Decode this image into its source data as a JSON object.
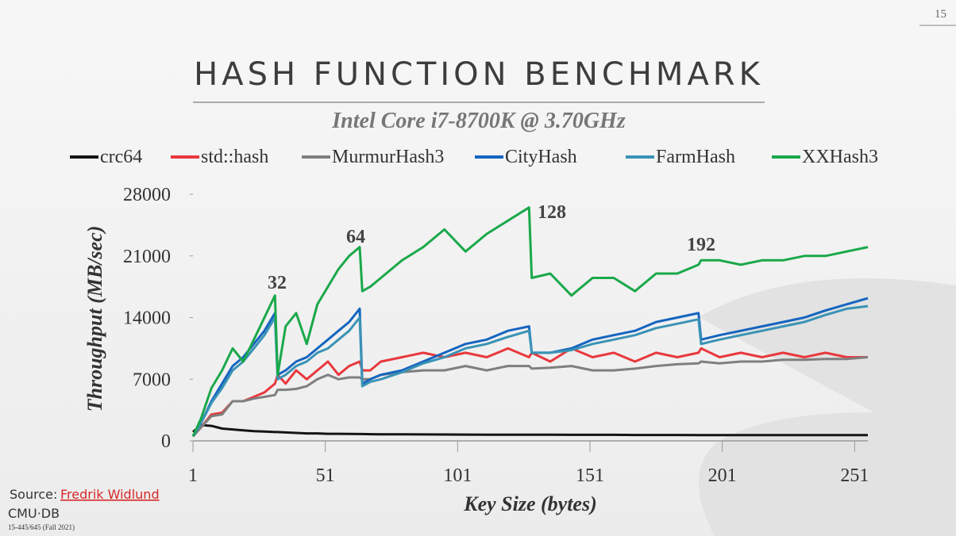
{
  "slide": {
    "page_number": "15",
    "title": "HASH FUNCTION BENCHMARK",
    "source_prefix": "Source:",
    "source_link": "Fredrik Widlund",
    "logo": "CMU·DB",
    "course": "15-445/645 (Fall 2021)"
  },
  "chart_data": {
    "type": "line",
    "subtitle": "Intel Core i7-8700K @ 3.70GHz",
    "x_label": "Key Size (bytes)",
    "y_label": "Throughput (MB/sec)",
    "x": [
      1,
      4,
      8,
      12,
      16,
      20,
      24,
      28,
      32,
      33,
      36,
      40,
      44,
      48,
      52,
      56,
      60,
      64,
      65,
      68,
      72,
      80,
      88,
      96,
      104,
      112,
      120,
      128,
      129,
      136,
      144,
      152,
      160,
      168,
      176,
      184,
      192,
      193,
      200,
      208,
      216,
      224,
      232,
      240,
      248,
      256
    ],
    "xlim": [
      1,
      256
    ],
    "xticks": [
      1,
      51,
      101,
      151,
      201,
      251
    ],
    "ylim": [
      0,
      28000
    ],
    "yticks": [
      0,
      7000,
      14000,
      21000,
      28000
    ],
    "grid": false,
    "legend": "top",
    "annotations": [
      "32",
      "64",
      "128",
      "192"
    ],
    "series": [
      {
        "name": "crc64",
        "color": "#141414",
        "values": [
          1000,
          1800,
          1700,
          1400,
          1300,
          1200,
          1100,
          1050,
          1000,
          1000,
          950,
          900,
          850,
          850,
          800,
          800,
          780,
          770,
          770,
          760,
          750,
          740,
          730,
          720,
          710,
          700,
          700,
          690,
          690,
          690,
          680,
          680,
          680,
          670,
          670,
          670,
          660,
          660,
          660,
          660,
          660,
          650,
          650,
          650,
          650,
          650
        ]
      },
      {
        "name": "std::hash",
        "color": "#e8383d",
        "values": [
          500,
          1500,
          3000,
          3200,
          4500,
          4500,
          5000,
          5500,
          6500,
          7500,
          6500,
          8000,
          7000,
          8000,
          9000,
          7500,
          8500,
          9000,
          8000,
          8000,
          9000,
          9500,
          10000,
          9500,
          10000,
          9500,
          10500,
          9500,
          10000,
          9000,
          10500,
          9500,
          10000,
          9000,
          10000,
          9500,
          10000,
          10500,
          9500,
          10000,
          9500,
          10000,
          9500,
          10000,
          9500,
          9500
        ]
      },
      {
        "name": "MurmurHash3",
        "color": "#7f7f7f",
        "values": [
          500,
          1500,
          2800,
          3000,
          4500,
          4500,
          4800,
          5000,
          5200,
          5800,
          5800,
          5900,
          6200,
          7000,
          7500,
          7000,
          7200,
          7200,
          7000,
          7000,
          7500,
          7800,
          8000,
          8000,
          8500,
          8000,
          8500,
          8500,
          8200,
          8300,
          8500,
          8000,
          8000,
          8200,
          8500,
          8700,
          8800,
          9000,
          8800,
          9000,
          9000,
          9200,
          9200,
          9300,
          9300,
          9500
        ]
      },
      {
        "name": "CityHash",
        "color": "#1565c0",
        "values": [
          500,
          2000,
          4500,
          6500,
          8500,
          9500,
          11000,
          12500,
          14500,
          7500,
          8000,
          9000,
          9500,
          10500,
          11500,
          12500,
          13500,
          15000,
          6500,
          7000,
          7500,
          8000,
          9000,
          10000,
          11000,
          11500,
          12500,
          13000,
          10000,
          10000,
          10500,
          11500,
          12000,
          12500,
          13500,
          14000,
          14500,
          11500,
          12000,
          12500,
          13000,
          13500,
          14000,
          14800,
          15500,
          16200
        ]
      },
      {
        "name": "FarmHash",
        "color": "#3a93b5",
        "values": [
          500,
          2000,
          4300,
          6000,
          8000,
          9000,
          10500,
          12000,
          14000,
          7000,
          7500,
          8500,
          9000,
          10000,
          10500,
          11500,
          12500,
          14000,
          6200,
          6700,
          7000,
          7800,
          8800,
          9500,
          10500,
          11000,
          11800,
          12500,
          10000,
          10000,
          10300,
          11000,
          11500,
          12000,
          12800,
          13300,
          13800,
          11000,
          11500,
          12000,
          12500,
          13000,
          13500,
          14300,
          15000,
          15300
        ]
      },
      {
        "name": "XXHash3",
        "color": "#1aa84a",
        "values": [
          500,
          2500,
          6000,
          8000,
          10500,
          9000,
          11500,
          14000,
          16500,
          7500,
          13000,
          14500,
          11000,
          15500,
          17500,
          19500,
          21000,
          22000,
          17000,
          17500,
          18500,
          20500,
          22000,
          24000,
          21500,
          23500,
          25000,
          26500,
          18500,
          19000,
          16500,
          18500,
          18500,
          17000,
          19000,
          19000,
          20000,
          20500,
          20500,
          20000,
          20500,
          20500,
          21000,
          21000,
          21500,
          22000
        ]
      }
    ]
  }
}
